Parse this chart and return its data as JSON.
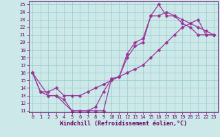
{
  "title": "",
  "xlabel": "Windchill (Refroidissement éolien,°C)",
  "ylabel": "",
  "bg_color": "#cce8e8",
  "line_color": "#993399",
  "grid_color": "#99cccc",
  "axis_color": "#660066",
  "text_color": "#660066",
  "xlim": [
    -0.5,
    23.5
  ],
  "ylim": [
    10.8,
    25.4
  ],
  "xticks": [
    0,
    1,
    2,
    3,
    4,
    5,
    6,
    7,
    8,
    9,
    10,
    11,
    12,
    13,
    14,
    15,
    16,
    17,
    18,
    19,
    20,
    21,
    22,
    23
  ],
  "yticks": [
    11,
    12,
    13,
    14,
    15,
    16,
    17,
    18,
    19,
    20,
    21,
    22,
    23,
    24,
    25
  ],
  "line1_x": [
    0,
    1,
    2,
    3,
    4,
    5,
    6,
    7,
    8,
    9,
    10,
    11,
    12,
    13,
    14,
    15,
    16,
    17,
    18,
    19,
    20,
    21,
    22,
    23
  ],
  "line1_y": [
    16.0,
    13.5,
    13.0,
    13.0,
    12.5,
    11.0,
    11.0,
    11.0,
    11.0,
    11.0,
    15.2,
    15.5,
    18.0,
    19.5,
    20.0,
    23.5,
    23.5,
    24.0,
    23.5,
    22.5,
    22.0,
    21.0,
    21.0,
    21.0
  ],
  "line2_x": [
    0,
    1,
    2,
    3,
    4,
    5,
    6,
    7,
    8,
    9,
    10,
    11,
    12,
    13,
    14,
    15,
    16,
    17,
    18,
    19,
    20,
    21,
    22,
    23
  ],
  "line2_y": [
    16.0,
    13.5,
    13.5,
    14.0,
    13.0,
    13.0,
    13.0,
    13.5,
    14.0,
    14.5,
    15.0,
    15.5,
    16.0,
    16.5,
    17.0,
    18.0,
    19.0,
    20.0,
    21.0,
    22.0,
    22.5,
    23.0,
    21.0,
    21.0
  ],
  "line3_x": [
    0,
    2,
    3,
    5,
    6,
    7,
    8,
    9,
    10,
    11,
    12,
    13,
    14,
    15,
    16,
    17,
    18,
    19,
    20,
    21,
    22,
    23
  ],
  "line3_y": [
    16.0,
    13.0,
    13.0,
    11.0,
    11.0,
    11.0,
    11.5,
    13.5,
    15.2,
    15.5,
    18.5,
    20.0,
    20.5,
    23.5,
    25.0,
    23.5,
    23.5,
    23.0,
    22.5,
    22.0,
    21.5,
    21.0
  ],
  "marker": "D",
  "marker_size": 2.5,
  "linewidth": 0.9,
  "tick_fontsize": 5.0,
  "label_fontsize": 6.0
}
